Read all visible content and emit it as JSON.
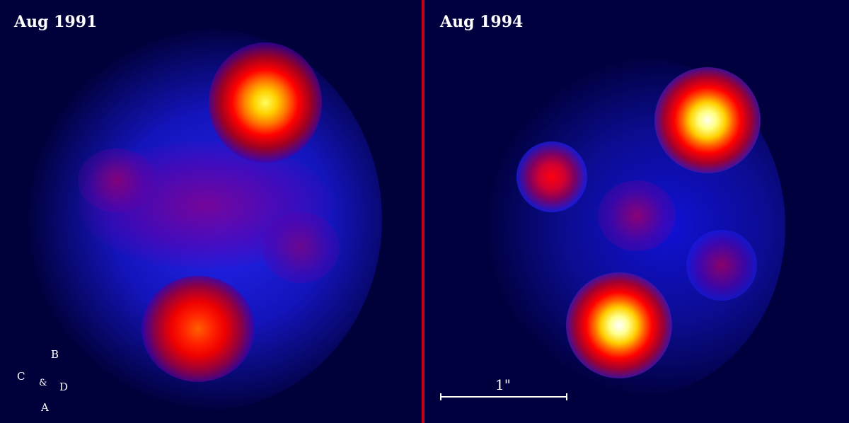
{
  "panels": [
    {
      "epoch_label": "Aug 1991"
    },
    {
      "epoch_label": "Aug 1994"
    }
  ],
  "compass": {
    "north": "B",
    "west": "C",
    "center": "&",
    "east": "D",
    "south": "A"
  },
  "scale_bar": {
    "label": "1\""
  },
  "colors": {
    "background": "#00003a",
    "divider": "#c8001c",
    "glow": "#1a1aff",
    "hot": "#ff0000",
    "hotter": "#ffcc00",
    "hottest": "#ffffff"
  }
}
